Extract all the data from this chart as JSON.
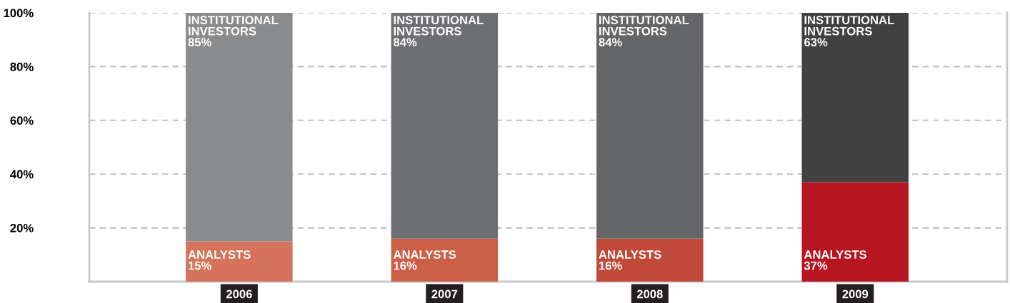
{
  "chart_data": {
    "type": "bar",
    "stacked": true,
    "categories": [
      "2006",
      "2007",
      "2008",
      "2009"
    ],
    "series": [
      {
        "name": "ANALYSTS",
        "colors": [
          "#d4735a",
          "#cc5f48",
          "#c0493a",
          "#b5161f"
        ],
        "values": [
          15,
          16,
          16,
          37
        ],
        "value_labels": [
          "15%",
          "16%",
          "16%",
          "37%"
        ]
      },
      {
        "name": "INSTITUTIONAL INVESTORS",
        "colors": [
          "#8a8b8d",
          "#6e6f73",
          "#646567",
          "#414141"
        ],
        "values": [
          85,
          84,
          84,
          63
        ],
        "value_labels": [
          "85%",
          "84%",
          "84%",
          "63%"
        ]
      }
    ],
    "ylim": [
      0,
      100
    ],
    "yticks": [
      {
        "value": 20,
        "label": "20%"
      },
      {
        "value": 40,
        "label": "40%"
      },
      {
        "value": 60,
        "label": "60%"
      },
      {
        "value": 80,
        "label": "80%"
      },
      {
        "value": 100,
        "label": "100%"
      }
    ],
    "grid": "y",
    "line_style": "dashed",
    "legend": false
  }
}
